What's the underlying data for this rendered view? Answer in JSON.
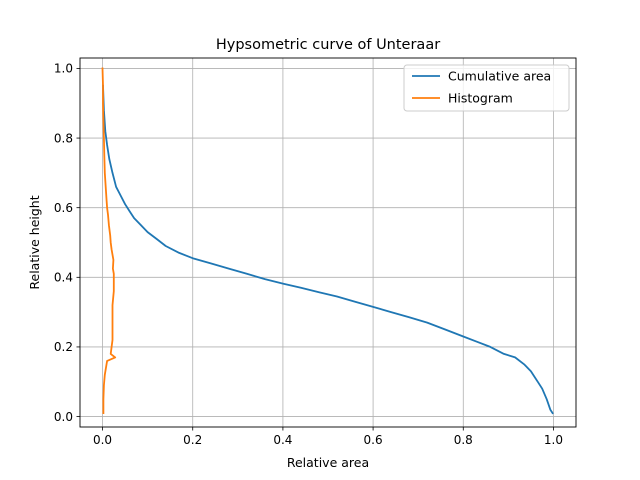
{
  "chart_data": {
    "type": "line",
    "title": "Hypsometric curve of Unteraar",
    "xlabel": "Relative area",
    "ylabel": "Relative height",
    "xlim": [
      -0.05,
      1.05
    ],
    "ylim": [
      -0.03,
      1.03
    ],
    "xticks": [
      0.0,
      0.2,
      0.4,
      0.6,
      0.8,
      1.0
    ],
    "yticks": [
      0.0,
      0.2,
      0.4,
      0.6,
      0.8,
      1.0
    ],
    "xtick_labels": [
      "0.0",
      "0.2",
      "0.4",
      "0.6",
      "0.8",
      "1.0"
    ],
    "ytick_labels": [
      "0.0",
      "0.2",
      "0.4",
      "0.6",
      "0.8",
      "1.0"
    ],
    "grid": true,
    "legend_position": "top-right",
    "series": [
      {
        "name": "Cumulative area",
        "color": "#1f77b4",
        "x": [
          0.998,
          0.993,
          0.985,
          0.975,
          0.965,
          0.95,
          0.935,
          0.915,
          0.89,
          0.86,
          0.83,
          0.8,
          0.76,
          0.72,
          0.68,
          0.64,
          0.6,
          0.56,
          0.52,
          0.48,
          0.44,
          0.4,
          0.36,
          0.32,
          0.28,
          0.24,
          0.2,
          0.17,
          0.14,
          0.12,
          0.1,
          0.085,
          0.07,
          0.06,
          0.05,
          0.04,
          0.03,
          0.022,
          0.015,
          0.01,
          0.006,
          0.003,
          0.001
        ],
        "y": [
          0.01,
          0.02,
          0.05,
          0.08,
          0.1,
          0.13,
          0.15,
          0.17,
          0.18,
          0.2,
          0.215,
          0.23,
          0.25,
          0.27,
          0.285,
          0.3,
          0.315,
          0.33,
          0.345,
          0.357,
          0.37,
          0.382,
          0.395,
          0.41,
          0.425,
          0.44,
          0.455,
          0.47,
          0.49,
          0.51,
          0.53,
          0.55,
          0.57,
          0.59,
          0.61,
          0.635,
          0.66,
          0.7,
          0.74,
          0.78,
          0.82,
          0.88,
          0.95
        ]
      },
      {
        "name": "Histogram",
        "color": "#ff7f0e",
        "x": [
          0.002,
          0.002,
          0.003,
          0.005,
          0.01,
          0.028,
          0.018,
          0.022,
          0.022,
          0.022,
          0.025,
          0.025,
          0.023,
          0.024,
          0.02,
          0.018,
          0.017,
          0.014,
          0.012,
          0.01,
          0.009,
          0.007,
          0.005,
          0.004,
          0.003,
          0.002,
          0.001,
          0.001,
          0.0
        ],
        "y": [
          0.01,
          0.05,
          0.09,
          0.12,
          0.16,
          0.17,
          0.18,
          0.22,
          0.26,
          0.32,
          0.36,
          0.41,
          0.425,
          0.45,
          0.48,
          0.5,
          0.52,
          0.55,
          0.58,
          0.6,
          0.62,
          0.66,
          0.7,
          0.75,
          0.8,
          0.85,
          0.9,
          0.95,
          1.0
        ]
      }
    ]
  }
}
